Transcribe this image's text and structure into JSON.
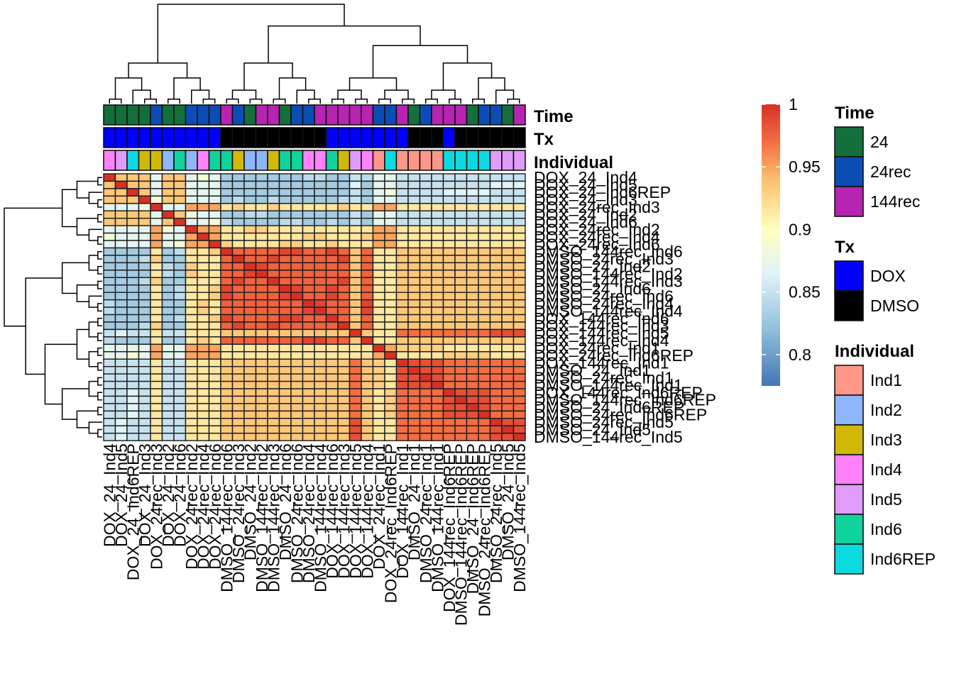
{
  "chart_data": {
    "type": "heatmap",
    "samples": [
      "DOX_24_Ind4",
      "DOX_24_Ind5",
      "DOX_24_Ind6REP",
      "DOX_24_Ind3",
      "DOX_24rec_Ind3",
      "DOX_24_Ind2",
      "DOX_24_Ind6",
      "DOX_24rec_Ind2",
      "DOX_24rec_Ind4",
      "DOX_24rec_Ind6",
      "DMSO_144rec_Ind6",
      "DMSO_24rec_Ind3",
      "DMSO_24_Ind2",
      "DMSO_144rec_Ind2",
      "DMSO_144rec_Ind3",
      "DMSO_24_Ind6",
      "DMSO_24rec_Ind6",
      "DMSO_24rec_Ind4",
      "DMSO_144rec_Ind4",
      "DOX_144rec_Ind6",
      "DOX_144rec_Ind3",
      "DOX_144rec_Ind5",
      "DOX_144rec_Ind4",
      "DOX_24rec_Ind1",
      "DOX_24rec_Ind6REP",
      "DOX_144rec_Ind1",
      "DMSO_24_Ind1",
      "DMSO_24rec_Ind1",
      "DMSO_144rec_Ind1",
      "DOX_144rec_Ind6REP",
      "DMSO_144rec_Ind6REP",
      "DMSO_24_Ind6REP",
      "DMSO_24rec_Ind6REP",
      "DMSO_24rec_Ind5",
      "DMSO_24_Ind5",
      "DMSO_144rec_Ind5"
    ],
    "row_labels": [
      "DOX_24_Ind4",
      "DOX_24_Ind5",
      "DOX_24_Ind6REP",
      "DOX_24_Ind3",
      "DOX_24rec_Ind3",
      "DOX_24_Ind2",
      "DOX_24_Ind6",
      "DOX_24rec_Ind2",
      "DOX_24rec_Ind4",
      "DOX_24rec_Ind6",
      "DMSO_144rec_Ind6",
      "DMSO_24rec_Ind3",
      "DMSO_24_Ind2",
      "DMSO_144rec_Ind2",
      "DMSO_144rec_Ind3",
      "DMSO_24_Ind6",
      "DMSO_24rec_Ind6",
      "DMSO_24rec_Ind4",
      "DMSO_144rec_Ind4",
      "DOX_144rec_Ind6",
      "DOX_144rec_Ind3",
      "DOX_144rec_Ind5",
      "DOX_144rec_Ind4",
      "DOX_24rec_Ind1",
      "DOX_24rec_Ind6REP",
      "DOX_144rec_Ind1",
      "DMSO_24_Ind1",
      "DMSO_24rec_Ind1",
      "DMSO_144rec_Ind1",
      "DOX_144rec_Ind6REP",
      "DMSO_144rec_Ind6REP",
      "DMSO_24_Ind6REP",
      "DMSO_24rec_Ind6REP",
      "DMSO_24rec_Ind5",
      "DMSO_24_Ind5",
      "DMSO_144rec_Ind5"
    ],
    "col_labels": [
      "DOX_24_Ind4",
      "DOX_24_Ind5",
      "DOX_24_Ind6REP",
      "DOX_24_Ind3",
      "DOX_24rec_Ind3",
      "DOX_24_Ind2",
      "DOX_24_Ind6",
      "DOX_24rec_Ind2",
      "DOX_24rec_Ind4",
      "DOX_24rec_Ind6",
      "DMSO_144rec_Ind6",
      "DMSO_24rec_Ind3",
      "DMSO_24_Ind2",
      "DMSO_144rec_Ind2",
      "DMSO_144rec_Ind3",
      "DMSO_24_Ind6",
      "DMSO_24rec_Ind6",
      "DMSO_24rec_Ind4",
      "DMSO_144rec_Ind4",
      "DOX_144rec_Ind6",
      "DOX_144rec_Ind3",
      "DOX_144rec_Ind5",
      "DOX_144rec_Ind4",
      "DOX_24rec_Ind1",
      "DOX_24rec_Ind6REP",
      "DOX_144rec_Ind1",
      "DMSO_24_Ind1",
      "DMSO_24rec_Ind1",
      "DMSO_144rec_Ind1",
      "DOX_144rec_Ind6REP",
      "DMSO_144rec_Ind6REP",
      "DMSO_24_Ind6REP",
      "DMSO_24rec_Ind6REP",
      "DMSO_24rec_Ind5",
      "DMSO_24_Ind5",
      "DMSO_144rec_Ind5"
    ],
    "annotation_titles": {
      "time": "Time",
      "tx": "Tx",
      "individual": "Individual"
    },
    "time": [
      "24",
      "24",
      "24",
      "24",
      "24rec",
      "24",
      "24",
      "24rec",
      "24rec",
      "24rec",
      "144rec",
      "24rec",
      "24",
      "144rec",
      "144rec",
      "24",
      "24rec",
      "24rec",
      "144rec",
      "144rec",
      "144rec",
      "144rec",
      "144rec",
      "24rec",
      "24rec",
      "144rec",
      "24",
      "24rec",
      "144rec",
      "144rec",
      "144rec",
      "24",
      "24rec",
      "24rec",
      "24",
      "144rec"
    ],
    "tx": [
      "DOX",
      "DOX",
      "DOX",
      "DOX",
      "DOX",
      "DOX",
      "DOX",
      "DOX",
      "DOX",
      "DOX",
      "DMSO",
      "DMSO",
      "DMSO",
      "DMSO",
      "DMSO",
      "DMSO",
      "DMSO",
      "DMSO",
      "DMSO",
      "DOX",
      "DOX",
      "DOX",
      "DOX",
      "DOX",
      "DOX",
      "DOX",
      "DMSO",
      "DMSO",
      "DMSO",
      "DOX",
      "DMSO",
      "DMSO",
      "DMSO",
      "DMSO",
      "DMSO",
      "DMSO"
    ],
    "individual": [
      "Ind4",
      "Ind5",
      "Ind6REP",
      "Ind3",
      "Ind3",
      "Ind2",
      "Ind6",
      "Ind2",
      "Ind4",
      "Ind6",
      "Ind6",
      "Ind3",
      "Ind2",
      "Ind2",
      "Ind3",
      "Ind6",
      "Ind6",
      "Ind4",
      "Ind4",
      "Ind6",
      "Ind3",
      "Ind5",
      "Ind4",
      "Ind1",
      "Ind6REP",
      "Ind1",
      "Ind1",
      "Ind1",
      "Ind1",
      "Ind6REP",
      "Ind6REP",
      "Ind6REP",
      "Ind6REP",
      "Ind5",
      "Ind5",
      "Ind5"
    ],
    "color_scale": {
      "min": 0.775,
      "max": 1,
      "ticks": [
        "1",
        "0.95",
        "0.9",
        "0.85",
        "0.8"
      ],
      "stops": [
        {
          "value": 0.775,
          "color": "#4575b4"
        },
        {
          "value": 0.82,
          "color": "#91bfdb"
        },
        {
          "value": 0.865,
          "color": "#e0f3f8"
        },
        {
          "value": 0.9,
          "color": "#ffffbf"
        },
        {
          "value": 0.94,
          "color": "#fdbf6f"
        },
        {
          "value": 0.97,
          "color": "#f46d43"
        },
        {
          "value": 1.0,
          "color": "#d73027"
        }
      ]
    }
  },
  "legend": {
    "time": {
      "title": "Time",
      "items": [
        {
          "label": "24",
          "color": "#13703c"
        },
        {
          "label": "24rec",
          "color": "#0b4db5"
        },
        {
          "label": "144rec",
          "color": "#b624b1"
        }
      ]
    },
    "tx": {
      "title": "Tx",
      "items": [
        {
          "label": "DOX",
          "color": "#0000ff"
        },
        {
          "label": "DMSO",
          "color": "#000000"
        }
      ]
    },
    "individual": {
      "title": "Individual",
      "items": [
        {
          "label": "Ind1",
          "color": "#ff9789"
        },
        {
          "label": "Ind2",
          "color": "#8eb6fa"
        },
        {
          "label": "Ind3",
          "color": "#d1b805"
        },
        {
          "label": "Ind4",
          "color": "#ff82fb"
        },
        {
          "label": "Ind5",
          "color": "#e09cfa"
        },
        {
          "label": "Ind6",
          "color": "#10d29d"
        },
        {
          "label": "Ind6REP",
          "color": "#0bdbe0"
        }
      ]
    }
  }
}
